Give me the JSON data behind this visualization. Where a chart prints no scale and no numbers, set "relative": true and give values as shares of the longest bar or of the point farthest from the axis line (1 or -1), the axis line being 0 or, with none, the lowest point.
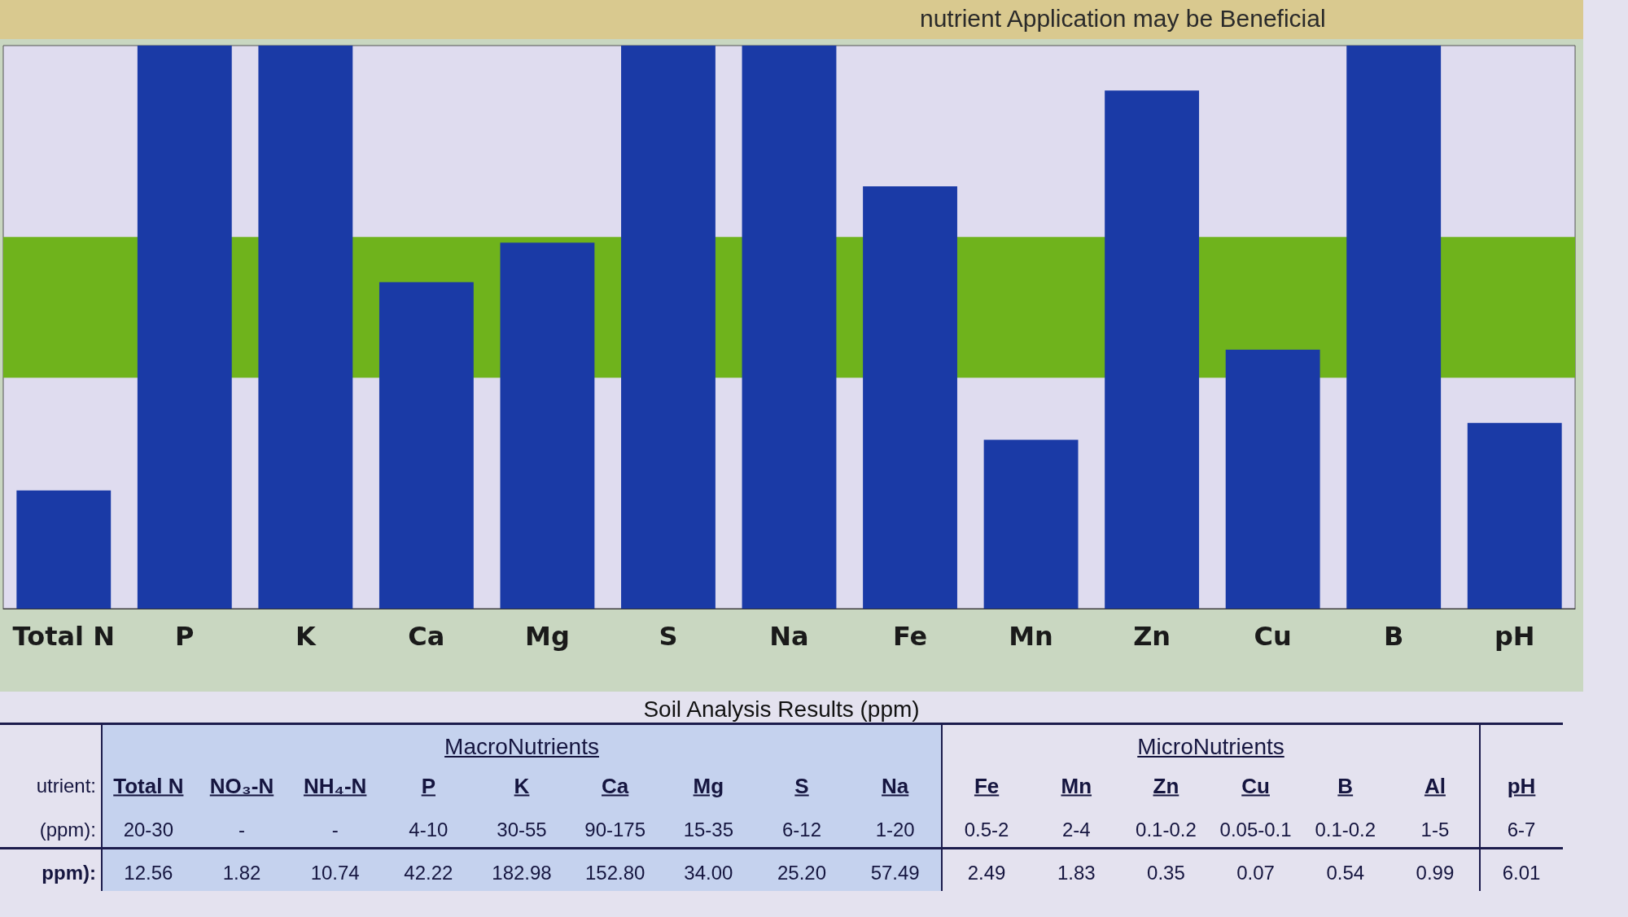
{
  "chart_data": [
    {
      "type": "bar",
      "annotations": [
        "nutrient Application may be Beneficial"
      ],
      "categories": [
        "Total N",
        "P",
        "K",
        "Ca",
        "Mg",
        "S",
        "Na",
        "Fe",
        "Mn",
        "Zn",
        "Cu",
        "B",
        "pH"
      ],
      "values": [
        0.21,
        1,
        1,
        0.58,
        0.65,
        1,
        1,
        0.75,
        0.3,
        0.92,
        0.46,
        1,
        0.33
      ],
      "color": "#1a3aa6",
      "relative": true,
      "bands": [
        {
          "axis": "y",
          "from": 0.41,
          "to": 0.66,
          "color": "#6fb31c"
        }
      ]
    },
    {
      "type": "other",
      "title": "Soil Analysis Results (ppm)",
      "annotations": [
        "MacroNutrients",
        "MicroNutrients",
        "utrient:"
      ],
      "categories": [
        "Total N",
        "NO₃-N",
        "NH₄-N",
        "P",
        "K",
        "Ca",
        "Mg",
        "S",
        "Na",
        "Fe",
        "Mn",
        "Zn",
        "Cu",
        "B",
        "Al",
        "pH"
      ],
      "series": [
        {
          "name": "(ppm):",
          "values": [
            null,
            null,
            null,
            null,
            null,
            null,
            null,
            null,
            null,
            null,
            null,
            null,
            null,
            null,
            null,
            null
          ],
          "value_labels": [
            "20-30",
            "-",
            "-",
            "4-10",
            "30-55",
            "90-175",
            "15-35",
            "6-12",
            "1-20",
            "0.5-2",
            "2-4",
            "0.1-0.2",
            "0.05-0.1",
            "0.1-0.2",
            "1-5",
            "6-7"
          ]
        },
        {
          "name": "ppm):",
          "values": [
            12.56,
            1.82,
            10.74,
            42.22,
            182.98,
            152.8,
            34.0,
            25.2,
            57.49,
            2.49,
            1.83,
            0.35,
            0.07,
            0.54,
            0.99,
            6.01
          ],
          "value_labels": [
            "12.56",
            "1.82",
            "10.74",
            "42.22",
            "182.98",
            "152.80",
            "34.00",
            "25.20",
            "57.49",
            "2.49",
            "1.83",
            "0.35",
            "0.07",
            "0.54",
            "0.99",
            "6.01"
          ]
        }
      ]
    }
  ]
}
